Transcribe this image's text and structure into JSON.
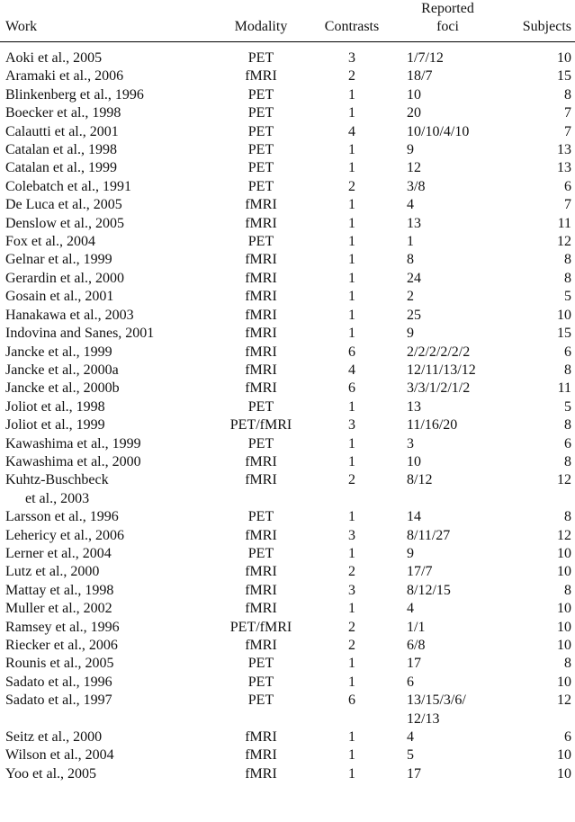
{
  "headers": {
    "work": "Work",
    "modality": "Modality",
    "contrasts": "Contrasts",
    "foci_line1": "Reported",
    "foci_line2": "foci",
    "subjects": "Subjects"
  },
  "rows": [
    {
      "work": [
        "Aoki et al., 2005"
      ],
      "modality": "PET",
      "contrasts": "3",
      "foci": [
        "1/7/12"
      ],
      "subjects": "10"
    },
    {
      "work": [
        "Aramaki et al., 2006"
      ],
      "modality": "fMRI",
      "contrasts": "2",
      "foci": [
        "18/7"
      ],
      "subjects": "15"
    },
    {
      "work": [
        "Blinkenberg et al., 1996"
      ],
      "modality": "PET",
      "contrasts": "1",
      "foci": [
        "10"
      ],
      "subjects": "8"
    },
    {
      "work": [
        "Boecker et al., 1998"
      ],
      "modality": "PET",
      "contrasts": "1",
      "foci": [
        "20"
      ],
      "subjects": "7"
    },
    {
      "work": [
        "Calautti et al., 2001"
      ],
      "modality": "PET",
      "contrasts": "4",
      "foci": [
        "10/10/4/10"
      ],
      "subjects": "7"
    },
    {
      "work": [
        "Catalan et al., 1998"
      ],
      "modality": "PET",
      "contrasts": "1",
      "foci": [
        "9"
      ],
      "subjects": "13"
    },
    {
      "work": [
        "Catalan et al., 1999"
      ],
      "modality": "PET",
      "contrasts": "1",
      "foci": [
        "12"
      ],
      "subjects": "13"
    },
    {
      "work": [
        "Colebatch et al., 1991"
      ],
      "modality": "PET",
      "contrasts": "2",
      "foci": [
        "3/8"
      ],
      "subjects": "6"
    },
    {
      "work": [
        "De Luca et al., 2005"
      ],
      "modality": "fMRI",
      "contrasts": "1",
      "foci": [
        "4"
      ],
      "subjects": "7"
    },
    {
      "work": [
        "Denslow et al., 2005"
      ],
      "modality": "fMRI",
      "contrasts": "1",
      "foci": [
        "13"
      ],
      "subjects": "11"
    },
    {
      "work": [
        "Fox et al., 2004"
      ],
      "modality": "PET",
      "contrasts": "1",
      "foci": [
        "1"
      ],
      "subjects": "12"
    },
    {
      "work": [
        "Gelnar et al., 1999"
      ],
      "modality": "fMRI",
      "contrasts": "1",
      "foci": [
        "8"
      ],
      "subjects": "8"
    },
    {
      "work": [
        "Gerardin et al., 2000"
      ],
      "modality": "fMRI",
      "contrasts": "1",
      "foci": [
        "24"
      ],
      "subjects": "8"
    },
    {
      "work": [
        "Gosain et al., 2001"
      ],
      "modality": "fMRI",
      "contrasts": "1",
      "foci": [
        "2"
      ],
      "subjects": "5"
    },
    {
      "work": [
        "Hanakawa et al., 2003"
      ],
      "modality": "fMRI",
      "contrasts": "1",
      "foci": [
        "25"
      ],
      "subjects": "10"
    },
    {
      "work": [
        "Indovina and Sanes, 2001"
      ],
      "modality": "fMRI",
      "contrasts": "1",
      "foci": [
        "9"
      ],
      "subjects": "15"
    },
    {
      "work": [
        "Jancke et al., 1999"
      ],
      "modality": "fMRI",
      "contrasts": "6",
      "foci": [
        "2/2/2/2/2/2"
      ],
      "subjects": "6"
    },
    {
      "work": [
        "Jancke et al., 2000a"
      ],
      "modality": "fMRI",
      "contrasts": "4",
      "foci": [
        "12/11/13/12"
      ],
      "subjects": "8"
    },
    {
      "work": [
        "Jancke et al., 2000b"
      ],
      "modality": "fMRI",
      "contrasts": "6",
      "foci": [
        "3/3/1/2/1/2"
      ],
      "subjects": "11"
    },
    {
      "work": [
        "Joliot et al., 1998"
      ],
      "modality": "PET",
      "contrasts": "1",
      "foci": [
        "13"
      ],
      "subjects": "5"
    },
    {
      "work": [
        "Joliot et al., 1999"
      ],
      "modality": "PET/fMRI",
      "contrasts": "3",
      "foci": [
        "11/16/20"
      ],
      "subjects": "8"
    },
    {
      "work": [
        "Kawashima et al., 1999"
      ],
      "modality": "PET",
      "contrasts": "1",
      "foci": [
        "3"
      ],
      "subjects": "6"
    },
    {
      "work": [
        "Kawashima et al., 2000"
      ],
      "modality": "fMRI",
      "contrasts": "1",
      "foci": [
        "10"
      ],
      "subjects": "8"
    },
    {
      "work": [
        "Kuhtz-Buschbeck",
        "et al., 2003"
      ],
      "modality": "fMRI",
      "contrasts": "2",
      "foci": [
        "8/12"
      ],
      "subjects": "12"
    },
    {
      "work": [
        "Larsson et al., 1996"
      ],
      "modality": "PET",
      "contrasts": "1",
      "foci": [
        "14"
      ],
      "subjects": "8"
    },
    {
      "work": [
        "Lehericy et al., 2006"
      ],
      "modality": "fMRI",
      "contrasts": "3",
      "foci": [
        "8/11/27"
      ],
      "subjects": "12"
    },
    {
      "work": [
        "Lerner et al., 2004"
      ],
      "modality": "PET",
      "contrasts": "1",
      "foci": [
        "9"
      ],
      "subjects": "10"
    },
    {
      "work": [
        "Lutz et al., 2000"
      ],
      "modality": "fMRI",
      "contrasts": "2",
      "foci": [
        "17/7"
      ],
      "subjects": "10"
    },
    {
      "work": [
        "Mattay et al., 1998"
      ],
      "modality": "fMRI",
      "contrasts": "3",
      "foci": [
        "8/12/15"
      ],
      "subjects": "8"
    },
    {
      "work": [
        "Muller et al., 2002"
      ],
      "modality": "fMRI",
      "contrasts": "1",
      "foci": [
        "4"
      ],
      "subjects": "10"
    },
    {
      "work": [
        "Ramsey et al., 1996"
      ],
      "modality": "PET/fMRI",
      "contrasts": "2",
      "foci": [
        "1/1"
      ],
      "subjects": "10"
    },
    {
      "work": [
        "Riecker et al., 2006"
      ],
      "modality": "fMRI",
      "contrasts": "2",
      "foci": [
        "6/8"
      ],
      "subjects": "10"
    },
    {
      "work": [
        "Rounis et al., 2005"
      ],
      "modality": "PET",
      "contrasts": "1",
      "foci": [
        "17"
      ],
      "subjects": "8"
    },
    {
      "work": [
        "Sadato et al., 1996"
      ],
      "modality": "PET",
      "contrasts": "1",
      "foci": [
        "6"
      ],
      "subjects": "10"
    },
    {
      "work": [
        "Sadato et al., 1997"
      ],
      "modality": "PET",
      "contrasts": "6",
      "foci": [
        "13/15/3/6/",
        "12/13"
      ],
      "subjects": "12"
    },
    {
      "work": [
        "Seitz et al., 2000"
      ],
      "modality": "fMRI",
      "contrasts": "1",
      "foci": [
        "4"
      ],
      "subjects": "6"
    },
    {
      "work": [
        "Wilson et al., 2004"
      ],
      "modality": "fMRI",
      "contrasts": "1",
      "foci": [
        "5"
      ],
      "subjects": "10"
    },
    {
      "work": [
        "Yoo et al., 2005"
      ],
      "modality": "fMRI",
      "contrasts": "1",
      "foci": [
        "17"
      ],
      "subjects": "10"
    }
  ]
}
